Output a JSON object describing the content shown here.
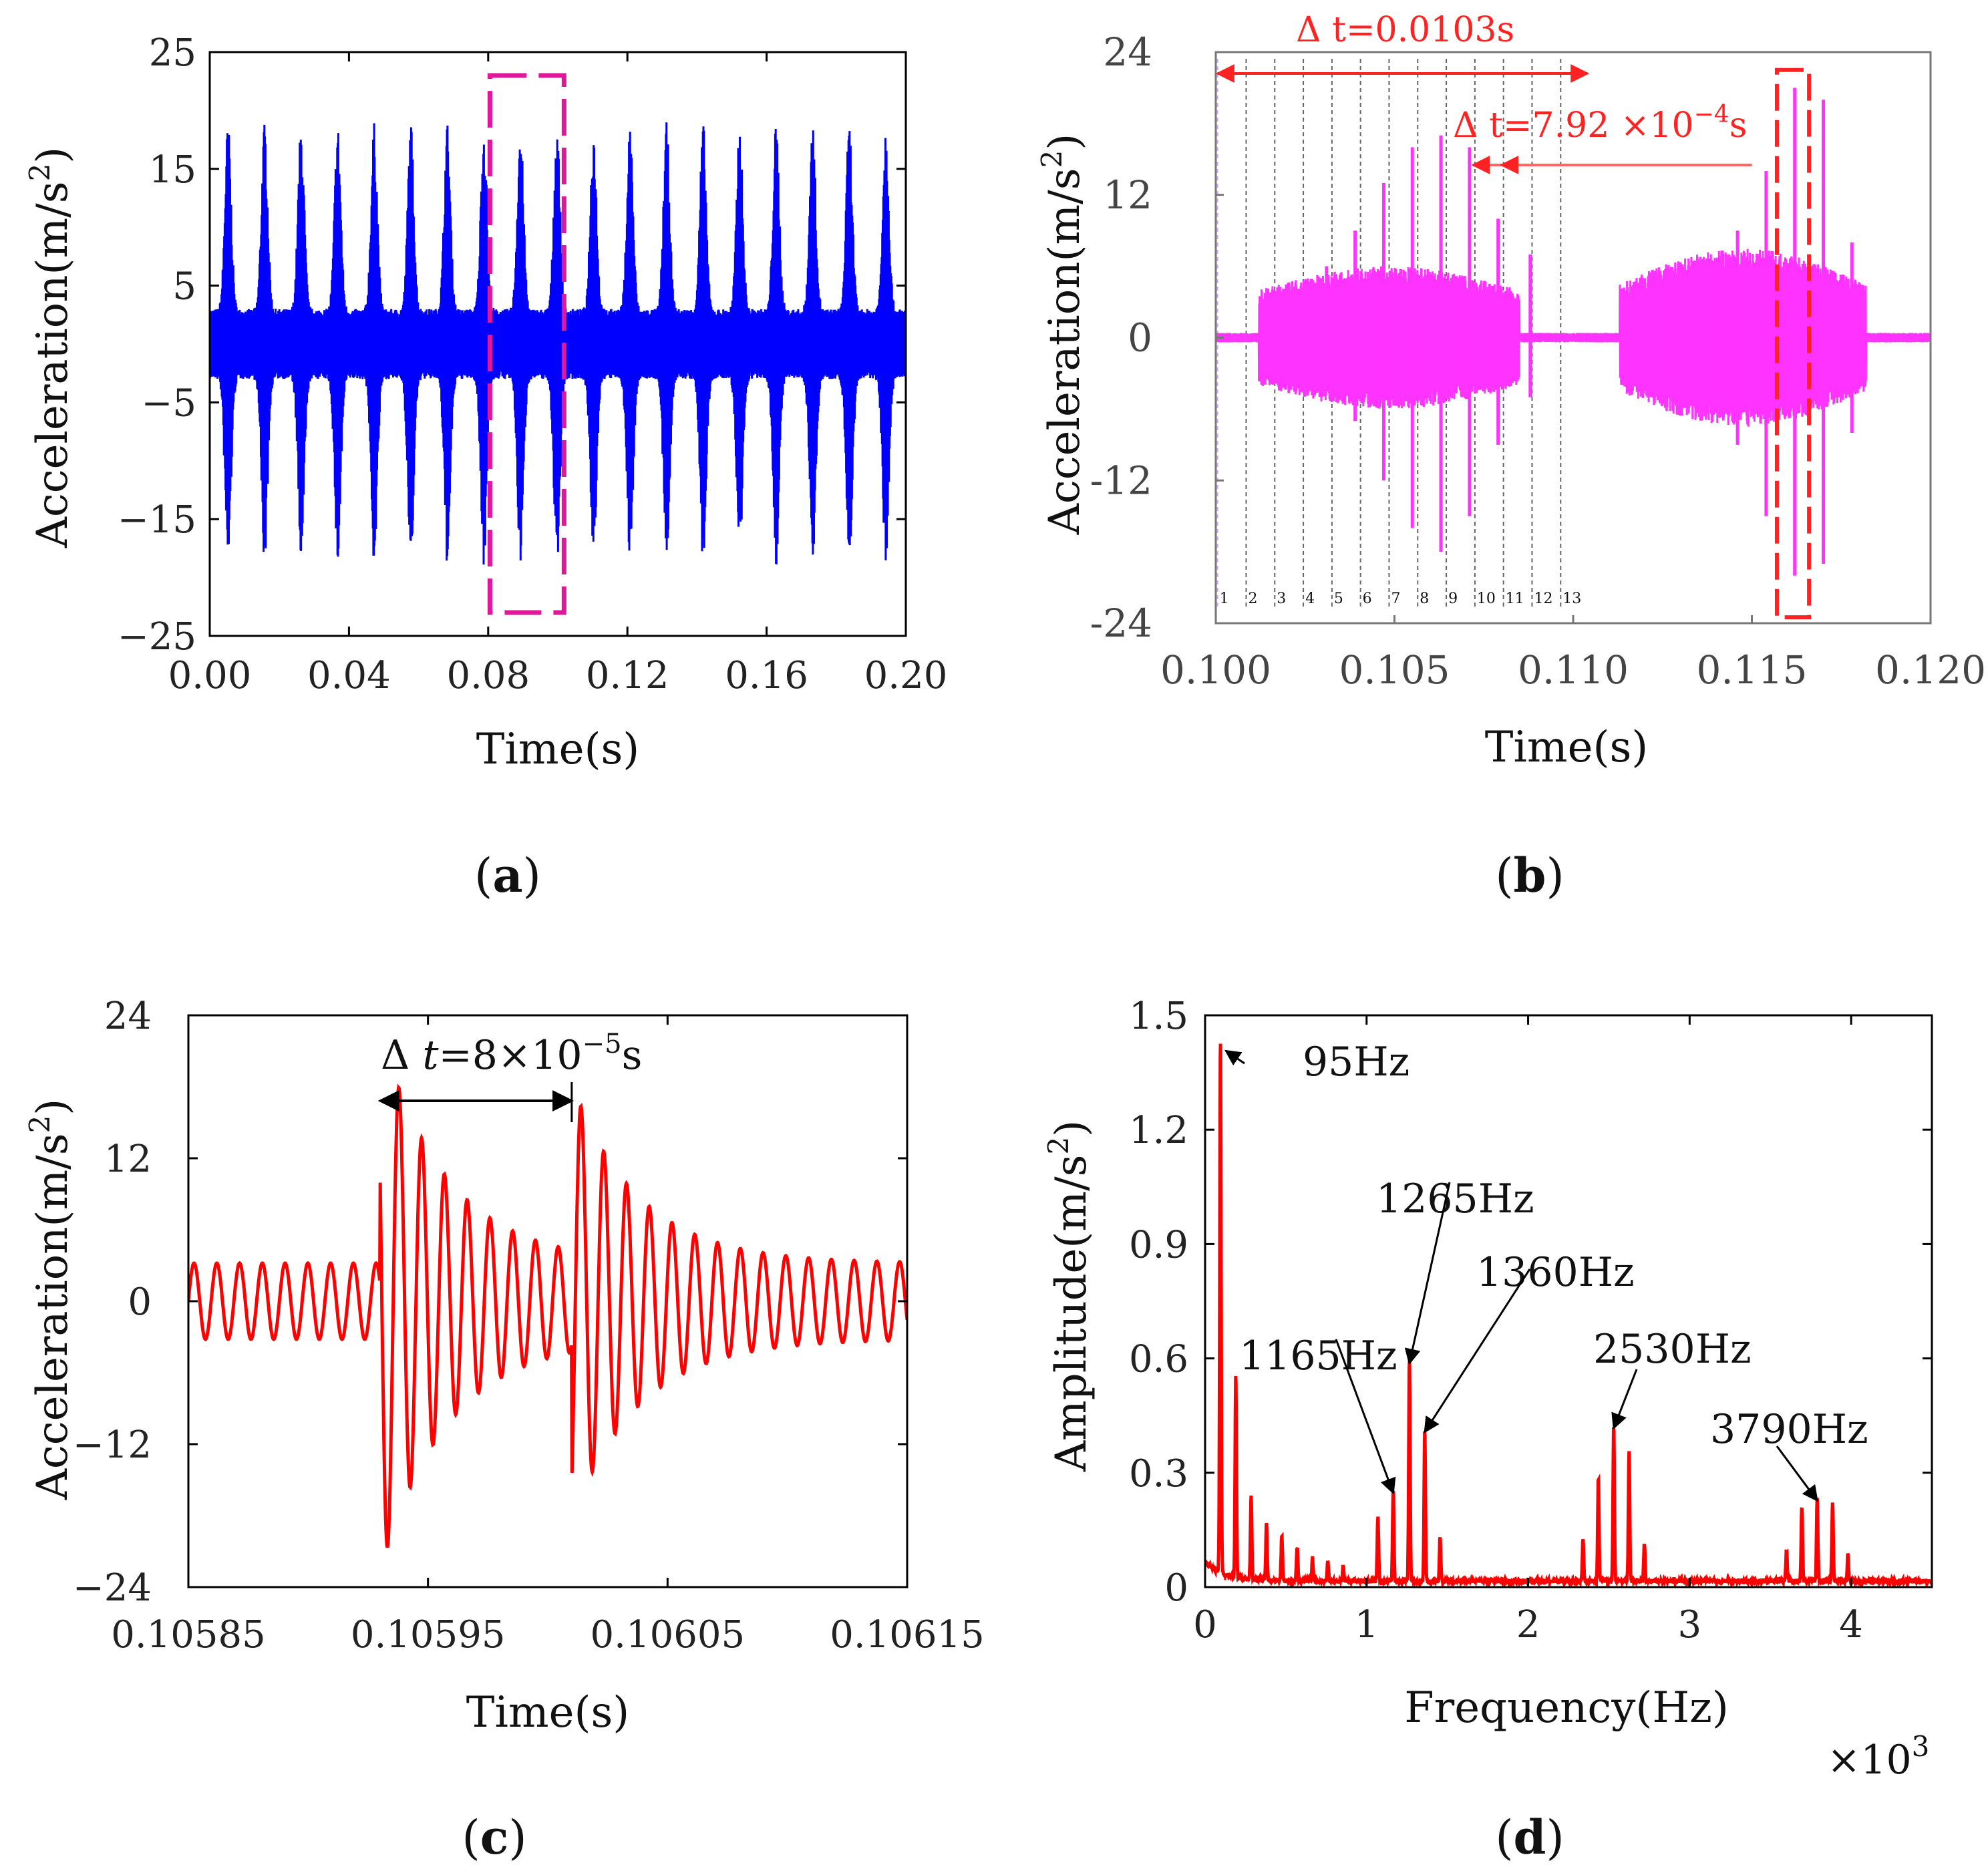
{
  "chart_data": [
    {
      "id": "a",
      "type": "line",
      "caption": "a",
      "xlabel": "Time(s)",
      "ylabel": "Acceleration(m/s",
      "ylabel_sup": "2",
      "ylabel_end": ")",
      "xlim": [
        0.0,
        0.2
      ],
      "ylim": [
        -25,
        25
      ],
      "xticks": [
        "0.00",
        "0.04",
        "0.08",
        "0.12",
        "0.16",
        "0.20"
      ],
      "yticks": [
        "25",
        "15",
        "5",
        "−5",
        "−15",
        "−25"
      ],
      "ytick_values": [
        25,
        15,
        5,
        -5,
        -15,
        -25
      ],
      "series": [
        {
          "name": "acceleration",
          "color": "#0000ff",
          "burst_period": 0.0105,
          "burst_amplitude": 19,
          "base_amplitude": 3
        }
      ],
      "highlight_box": {
        "x0": 0.0805,
        "x1": 0.1018,
        "y0": -23,
        "y1": 23,
        "color": "#e0179c"
      }
    },
    {
      "id": "b",
      "type": "line",
      "caption": "b",
      "xlabel": "Time(s)",
      "ylabel": "Acceleration(m/s",
      "ylabel_sup": "2",
      "ylabel_end": ")",
      "xlim": [
        0.1,
        0.12
      ],
      "ylim": [
        -24,
        24
      ],
      "xticks": [
        "0.100",
        "0.105",
        "0.110",
        "0.115",
        "0.120"
      ],
      "xtick_values": [
        0.1,
        0.105,
        0.11,
        0.115,
        0.12
      ],
      "yticks": [
        "24",
        "12",
        "0",
        "-12",
        "-24"
      ],
      "ytick_values": [
        24,
        12,
        0,
        -12,
        -24
      ],
      "series": [
        {
          "name": "acceleration",
          "color": "#ff33ff"
        }
      ],
      "marker_lines": [
        "1",
        "2",
        "3",
        "4",
        "5",
        "6",
        "7",
        "8",
        "9",
        "10",
        "11",
        "12",
        "13"
      ],
      "annotations": [
        {
          "text": "Δ t=0.0103s",
          "color": "#ff2222"
        },
        {
          "text": "Δ t=7.92 ×10",
          "sup": "−4",
          "end": "s",
          "color": "#ff2222"
        }
      ],
      "highlight_box": {
        "x0": 0.1157,
        "x1": 0.1166,
        "y0": -23.5,
        "y1": 22.5,
        "color": "#ff2222"
      }
    },
    {
      "id": "c",
      "type": "line",
      "caption": "c",
      "xlabel": "Time(s)",
      "ylabel": "Acceleration(m/s",
      "ylabel_sup": "2",
      "ylabel_end": ")",
      "xlim": [
        0.10585,
        0.10615
      ],
      "ylim": [
        -24,
        24
      ],
      "xticks": [
        "0.10585",
        "0.10595",
        "0.10605",
        "0.10615"
      ],
      "xtick_values": [
        0.10585,
        0.10595,
        0.10605,
        0.10615
      ],
      "yticks": [
        "24",
        "12",
        "0",
        "−12",
        "−24"
      ],
      "ytick_values": [
        24,
        12,
        0,
        -12,
        -24
      ],
      "series": [
        {
          "name": "acceleration",
          "color": "#ff0000",
          "impact_times": [
            0.10593,
            0.10601
          ],
          "impact_peaks": [
            19.5,
            14
          ]
        }
      ],
      "annotations": [
        {
          "text": "Δ ",
          "italic": "t",
          "rest": "=8×10",
          "sup": "−5",
          "end": "s"
        }
      ]
    },
    {
      "id": "d",
      "type": "line",
      "caption": "d",
      "xlabel": "Frequency(Hz)",
      "ylabel": "Amplitude(m/s",
      "ylabel_sup": "2",
      "ylabel_end": ")",
      "xlim": [
        0,
        4500
      ],
      "ylim": [
        0,
        1.5
      ],
      "xticks": [
        "0",
        "1",
        "2",
        "3",
        "4"
      ],
      "xtick_values": [
        0,
        1000,
        2000,
        3000,
        4000
      ],
      "x_multiplier": "×10",
      "x_multiplier_sup": "3",
      "yticks": [
        "1.5",
        "1.2",
        "0.9",
        "0.6",
        "0.3",
        "0"
      ],
      "ytick_values": [
        1.5,
        1.2,
        0.9,
        0.6,
        0.3,
        0
      ],
      "series": [
        {
          "name": "spectrum",
          "color": "#ff0000",
          "peaks": [
            {
              "f": 95,
              "a": 1.4
            },
            {
              "f": 190,
              "a": 0.53
            },
            {
              "f": 285,
              "a": 0.22
            },
            {
              "f": 380,
              "a": 0.15
            },
            {
              "f": 475,
              "a": 0.12
            },
            {
              "f": 570,
              "a": 0.09
            },
            {
              "f": 665,
              "a": 0.06
            },
            {
              "f": 760,
              "a": 0.05
            },
            {
              "f": 855,
              "a": 0.04
            },
            {
              "f": 1070,
              "a": 0.17
            },
            {
              "f": 1165,
              "a": 0.24
            },
            {
              "f": 1265,
              "a": 0.58
            },
            {
              "f": 1360,
              "a": 0.4
            },
            {
              "f": 1455,
              "a": 0.12
            },
            {
              "f": 2340,
              "a": 0.11
            },
            {
              "f": 2435,
              "a": 0.27
            },
            {
              "f": 2530,
              "a": 0.41
            },
            {
              "f": 2625,
              "a": 0.34
            },
            {
              "f": 2720,
              "a": 0.1
            },
            {
              "f": 3600,
              "a": 0.08
            },
            {
              "f": 3695,
              "a": 0.2
            },
            {
              "f": 3790,
              "a": 0.22
            },
            {
              "f": 3885,
              "a": 0.21
            },
            {
              "f": 3980,
              "a": 0.07
            }
          ]
        }
      ],
      "annotations": [
        {
          "text": "95Hz",
          "f": 95,
          "a": 1.4
        },
        {
          "text": "1265Hz",
          "f": 1265,
          "a": 0.58
        },
        {
          "text": "1360Hz",
          "f": 1360,
          "a": 0.4
        },
        {
          "text": "1165Hz",
          "f": 1165,
          "a": 0.24
        },
        {
          "text": "2530Hz",
          "f": 2530,
          "a": 0.41
        },
        {
          "text": "3790Hz",
          "f": 3790,
          "a": 0.22
        }
      ]
    }
  ]
}
